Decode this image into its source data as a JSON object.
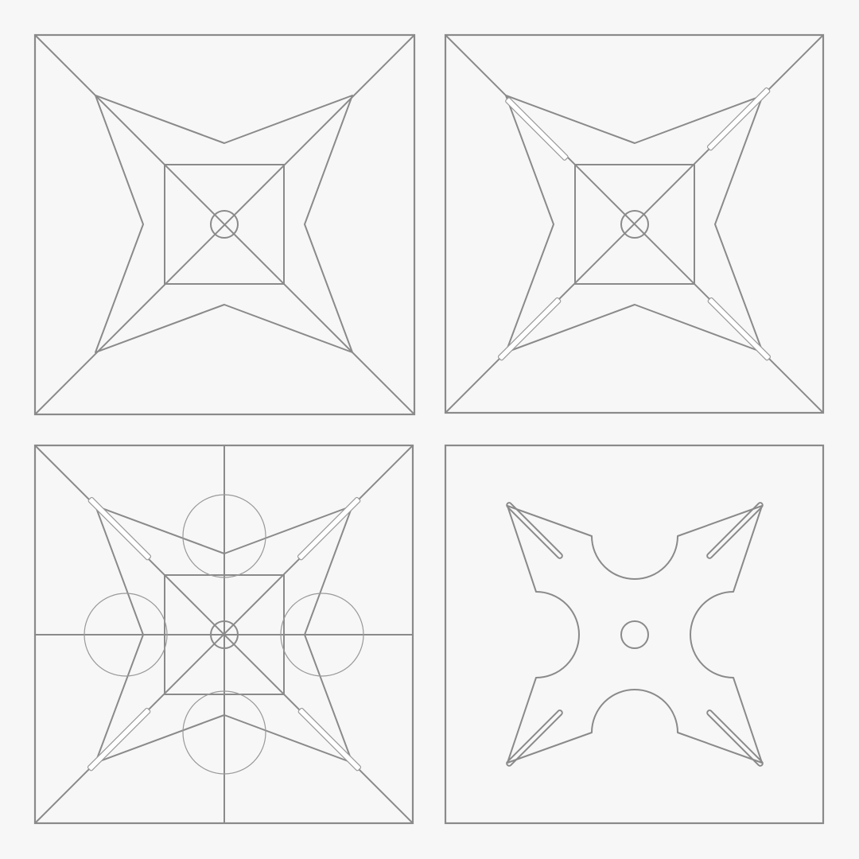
{
  "figure": {
    "panels": [
      {
        "id": "step-1",
        "features": [
          "square-frame",
          "diagonals",
          "star-outline",
          "inner-square",
          "center-hole"
        ]
      },
      {
        "id": "step-2",
        "features": [
          "square-frame",
          "diagonals",
          "star-outline",
          "inner-square",
          "center-hole",
          "corner-slots"
        ]
      },
      {
        "id": "step-3",
        "features": [
          "square-frame",
          "diagonals",
          "midlines",
          "star-outline",
          "inner-square",
          "center-hole",
          "corner-slots",
          "edge-circles"
        ]
      },
      {
        "id": "step-4",
        "features": [
          "square-frame",
          "shuriken-outline",
          "center-hole",
          "corner-slots"
        ]
      }
    ],
    "colors": {
      "background": "#f7f7f7",
      "stroke": "#8a8a8a",
      "slot_fill": "#ffffff"
    }
  }
}
